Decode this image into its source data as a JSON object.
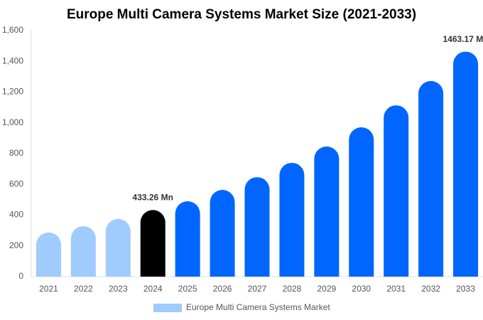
{
  "chart_data": {
    "type": "bar",
    "title": "Europe Multi Camera Systems Market Size (2021-2033)",
    "categories": [
      "2021",
      "2022",
      "2023",
      "2024",
      "2025",
      "2026",
      "2027",
      "2028",
      "2029",
      "2030",
      "2031",
      "2032",
      "2033"
    ],
    "series": [
      {
        "name": "Europe Multi Camera Systems Market",
        "color": "#a0cbfd",
        "values": [
          287,
          328,
          375,
          433.26,
          490,
          564,
          647,
          740,
          846,
          971,
          1114,
          1272,
          1463.17
        ],
        "value_labels": [
          null,
          null,
          null,
          "433.26 Mn",
          null,
          null,
          null,
          null,
          null,
          null,
          null,
          null,
          "1463.17 Mn"
        ],
        "bar_colors": [
          "#a0cbfd",
          "#a0cbfd",
          "#a0cbfd",
          "#000000",
          "#0066ff",
          "#0066ff",
          "#0066ff",
          "#0066ff",
          "#0066ff",
          "#0066ff",
          "#0066ff",
          "#0066ff",
          "#0066ff"
        ]
      }
    ],
    "ylim": [
      0,
      1600
    ],
    "yticks": [
      0,
      200,
      400,
      600,
      800,
      {
        "value": 1000,
        "label": "1,000"
      },
      {
        "value": 1200,
        "label": "1,200"
      },
      {
        "value": 1400,
        "label": "1,400"
      },
      {
        "value": 1600,
        "label": "1,600"
      }
    ],
    "grid": false
  }
}
